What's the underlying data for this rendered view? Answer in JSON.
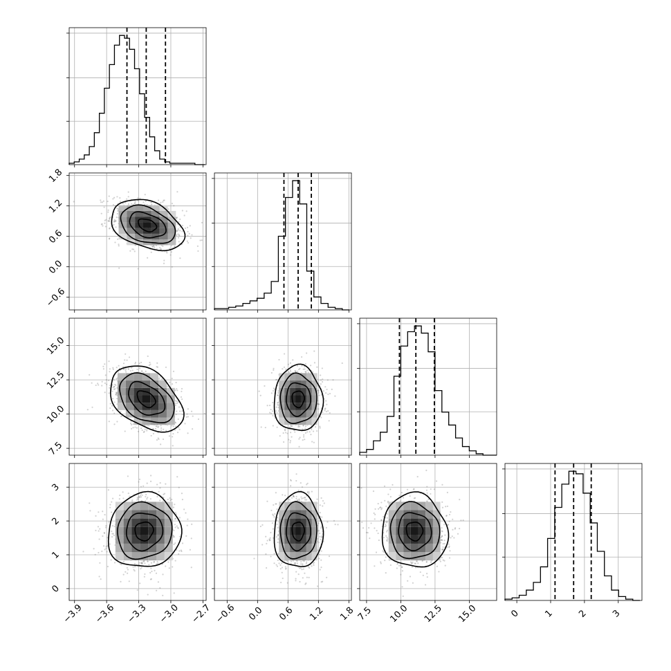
{
  "chart_data": {
    "type": "corner",
    "parameters": [
      {
        "range": [
          -3.95,
          -2.67
        ],
        "ticks": [
          -3.9,
          -3.6,
          -3.3,
          -3.0,
          -2.7
        ],
        "tick_labels": [
          "−3.9",
          "−3.6",
          "−3.3",
          "−3.0",
          "−2.7"
        ],
        "quantiles": [
          -3.41,
          -3.23,
          -3.05
        ],
        "hist_bins": [
          -3.95,
          -3.903,
          -3.856,
          -3.809,
          -3.762,
          -3.715,
          -3.668,
          -3.621,
          -3.574,
          -3.527,
          -3.48,
          -3.433,
          -3.386,
          -3.339,
          -3.292,
          -3.245,
          -3.198,
          -3.151,
          -3.104,
          -3.057,
          -3.01,
          -2.963,
          -2.916,
          -2.869,
          -2.822,
          -2.775,
          -2.728,
          -2.681
        ],
        "hist_counts": [
          0.01,
          0.02,
          0.04,
          0.07,
          0.13,
          0.23,
          0.37,
          0.55,
          0.72,
          0.86,
          0.93,
          0.91,
          0.83,
          0.69,
          0.51,
          0.34,
          0.2,
          0.1,
          0.04,
          0.02,
          0.01,
          0.01,
          0.01,
          0.01,
          0.01,
          0.0,
          0.0
        ]
      },
      {
        "range": [
          -0.85,
          1.85
        ],
        "ticks": [
          -0.6,
          0.0,
          0.6,
          1.2,
          1.8
        ],
        "tick_labels": [
          "−0.6",
          "0.0",
          "0.6",
          "1.2",
          "1.8"
        ],
        "quantiles": [
          0.52,
          0.8,
          1.06
        ],
        "hist_bins": [
          -0.85,
          -0.71,
          -0.57,
          -0.43,
          -0.29,
          -0.15,
          -0.01,
          0.13,
          0.27,
          0.41,
          0.55,
          0.69,
          0.83,
          0.97,
          1.11,
          1.25,
          1.39,
          1.53,
          1.67,
          1.81
        ],
        "hist_counts": [
          0.01,
          0.01,
          0.02,
          0.03,
          0.05,
          0.07,
          0.09,
          0.13,
          0.22,
          0.57,
          0.87,
          1.0,
          0.82,
          0.3,
          0.1,
          0.05,
          0.02,
          0.01,
          0.0
        ]
      },
      {
        "range": [
          7.0,
          17.0
        ],
        "ticks": [
          7.5,
          10.0,
          12.5,
          15.0
        ],
        "tick_labels": [
          "7.5",
          "10.0",
          "12.5",
          "15.0"
        ],
        "quantiles": [
          9.9,
          11.1,
          12.45
        ],
        "hist_bins": [
          7.0,
          7.5,
          8.0,
          8.5,
          9.0,
          9.5,
          10.0,
          10.5,
          11.0,
          11.5,
          12.0,
          12.5,
          13.0,
          13.5,
          14.0,
          14.5,
          15.0,
          15.5,
          16.0,
          16.5,
          17.0
        ],
        "hist_counts": [
          0.02,
          0.04,
          0.1,
          0.16,
          0.27,
          0.55,
          0.76,
          0.86,
          0.9,
          0.85,
          0.72,
          0.45,
          0.3,
          0.21,
          0.12,
          0.06,
          0.03,
          0.01,
          0.0,
          0.0
        ]
      },
      {
        "range": [
          -0.35,
          3.7
        ],
        "ticks": [
          0,
          1,
          2,
          3
        ],
        "tick_labels": [
          "0",
          "1",
          "2",
          "3"
        ],
        "quantiles": [
          1.13,
          1.68,
          2.2
        ],
        "hist_bins": [
          -0.35,
          -0.14,
          0.07,
          0.28,
          0.49,
          0.7,
          0.91,
          1.12,
          1.33,
          1.54,
          1.75,
          1.96,
          2.17,
          2.38,
          2.59,
          2.8,
          3.01,
          3.22,
          3.43,
          3.64
        ],
        "hist_counts": [
          0.01,
          0.02,
          0.04,
          0.08,
          0.14,
          0.26,
          0.48,
          0.72,
          0.9,
          1.0,
          0.98,
          0.83,
          0.6,
          0.38,
          0.19,
          0.08,
          0.03,
          0.01,
          0.0
        ]
      }
    ],
    "pairs": [
      {
        "row": 1,
        "col": 0,
        "center": [
          -3.22,
          0.82
        ],
        "sd": [
          0.17,
          0.25
        ],
        "rho": -0.35
      },
      {
        "row": 2,
        "col": 0,
        "center": [
          -3.23,
          11.1
        ],
        "sd": [
          0.17,
          1.2
        ],
        "rho": -0.4
      },
      {
        "row": 2,
        "col": 1,
        "center": [
          0.8,
          11.1
        ],
        "sd": [
          0.24,
          1.2
        ],
        "rho": 0.0
      },
      {
        "row": 3,
        "col": 0,
        "center": [
          -3.25,
          1.7
        ],
        "sd": [
          0.17,
          0.55
        ],
        "rho": 0.05
      },
      {
        "row": 3,
        "col": 1,
        "center": [
          0.8,
          1.7
        ],
        "sd": [
          0.24,
          0.55
        ],
        "rho": 0.0
      },
      {
        "row": 3,
        "col": 2,
        "center": [
          11.0,
          1.7
        ],
        "sd": [
          1.2,
          0.55
        ],
        "rho": -0.05
      }
    ],
    "contour_levels_sigma": [
      0.5,
      1.0,
      1.5,
      2.0
    ],
    "grid": true,
    "xlabel": "",
    "ylabel": ""
  }
}
